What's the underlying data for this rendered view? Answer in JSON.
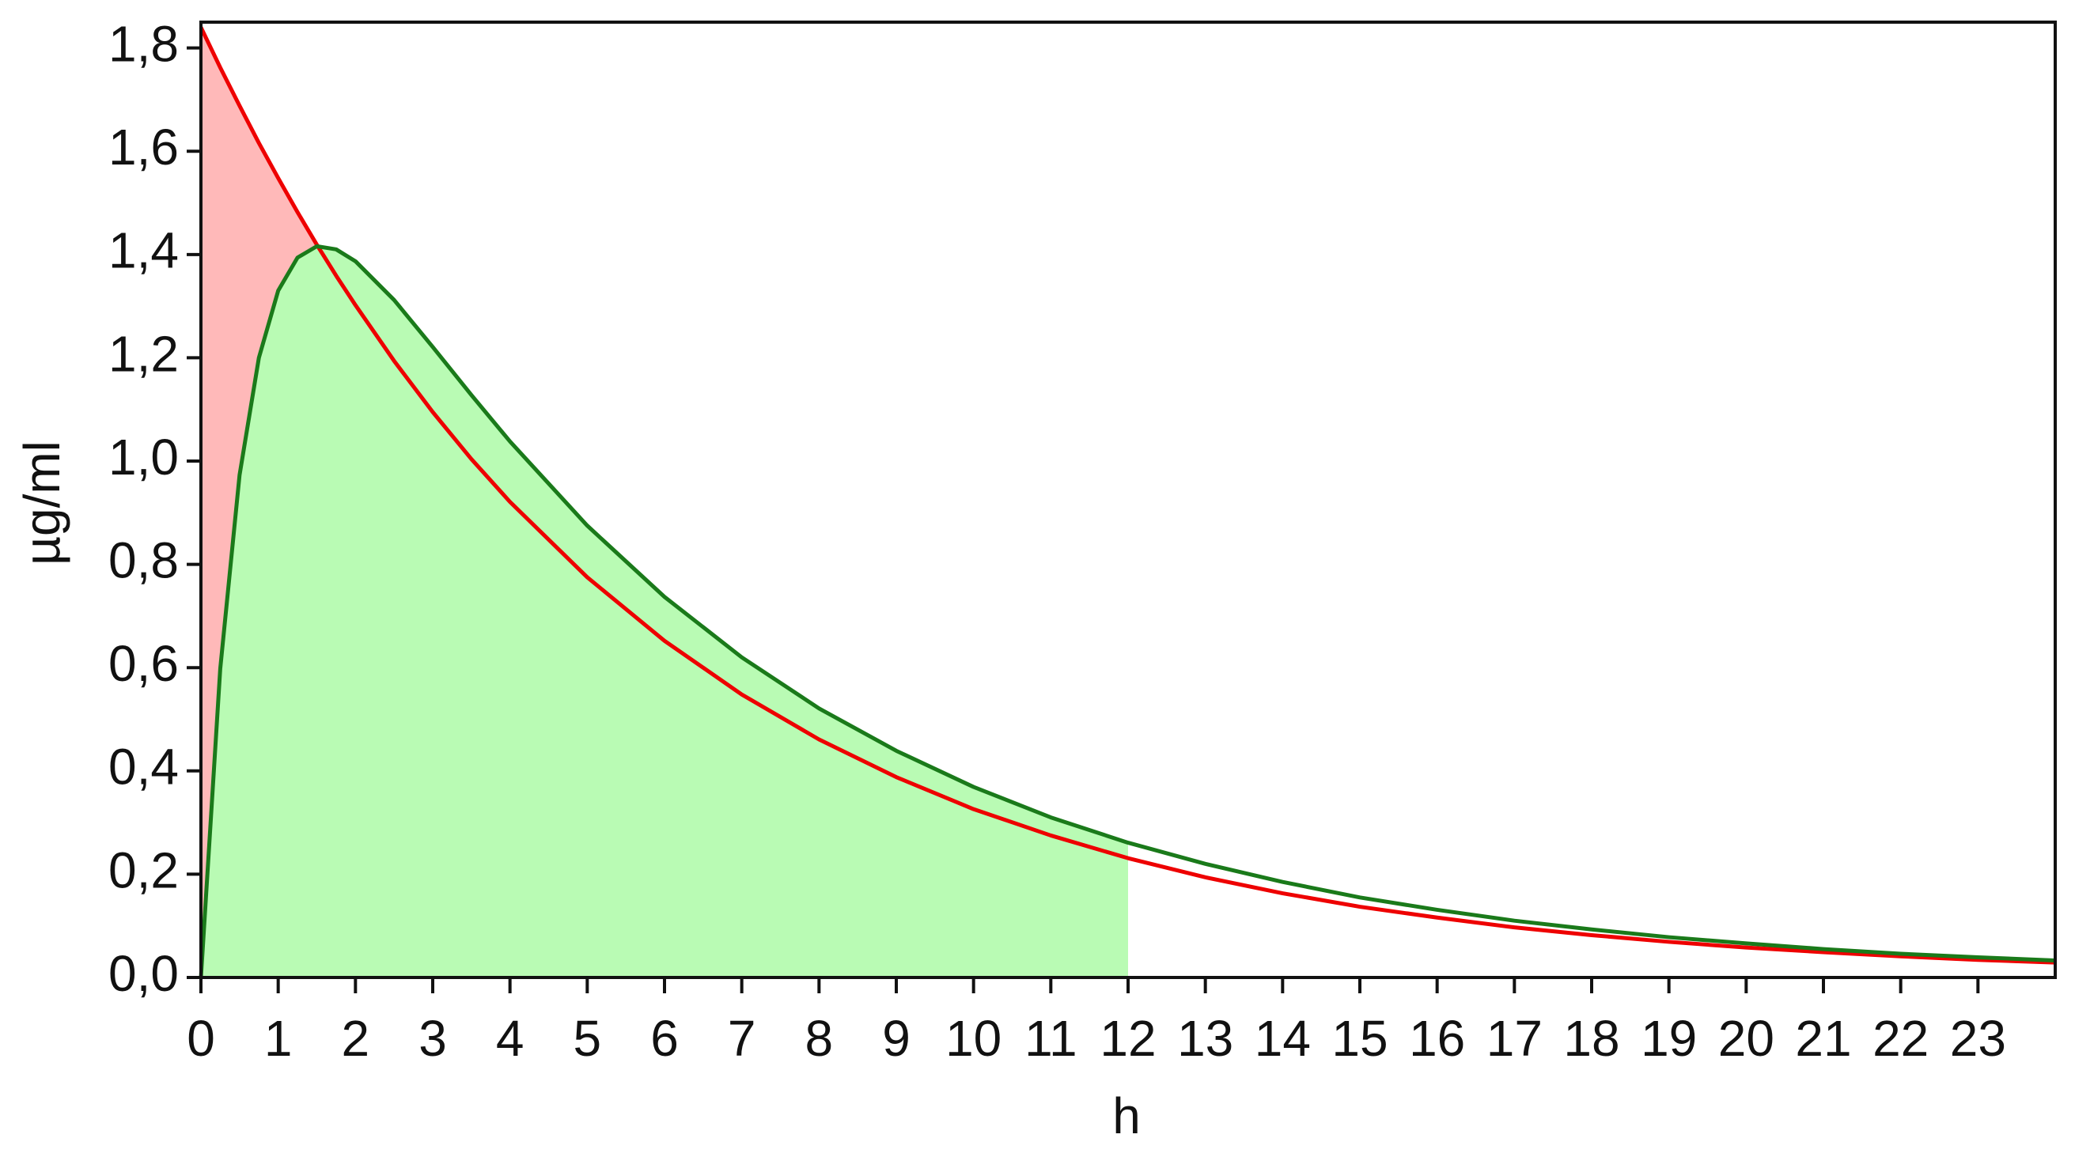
{
  "chart_data": {
    "type": "line",
    "xlabel": "h",
    "ylabel": "µg/ml",
    "x": [
      0,
      0.25,
      0.5,
      0.75,
      1,
      1.25,
      1.5,
      1.75,
      2,
      2.5,
      3,
      3.5,
      4,
      5,
      6,
      7,
      8,
      9,
      10,
      11,
      12,
      13,
      14,
      15,
      16,
      17,
      18,
      19,
      20,
      21,
      22,
      23,
      24
    ],
    "series": [
      {
        "color": "#ee0000",
        "fill_color": "#ffb9b9",
        "values": [
          1.84,
          1.762,
          1.688,
          1.616,
          1.548,
          1.482,
          1.419,
          1.359,
          1.302,
          1.194,
          1.095,
          1.004,
          0.921,
          0.775,
          0.652,
          0.548,
          0.461,
          0.388,
          0.326,
          0.275,
          0.231,
          0.194,
          0.163,
          0.137,
          0.116,
          0.097,
          0.082,
          0.069,
          0.058,
          0.049,
          0.041,
          0.034,
          0.029
        ]
      },
      {
        "color": "#1a7a1a",
        "fill_color": "#b9fbb4",
        "values": [
          0,
          0.598,
          0.973,
          1.2,
          1.33,
          1.394,
          1.416,
          1.41,
          1.387,
          1.312,
          1.221,
          1.128,
          1.038,
          0.875,
          0.737,
          0.62,
          0.521,
          0.439,
          0.369,
          0.31,
          0.261,
          0.22,
          0.185,
          0.155,
          0.131,
          0.11,
          0.093,
          0.078,
          0.066,
          0.055,
          0.046,
          0.039,
          0.033
        ]
      }
    ],
    "fill_to": 12,
    "xlim": [
      0,
      24
    ],
    "ylim": [
      0,
      1.85
    ],
    "xticks": [
      0,
      1,
      2,
      3,
      4,
      5,
      6,
      7,
      8,
      9,
      10,
      11,
      12,
      13,
      14,
      15,
      16,
      17,
      18,
      19,
      20,
      21,
      22,
      23
    ],
    "yticks": [
      {
        "value": 0,
        "label": "0,0"
      },
      {
        "value": 0.2,
        "label": "0,2"
      },
      {
        "value": 0.4,
        "label": "0,4"
      },
      {
        "value": 0.6,
        "label": "0,6"
      },
      {
        "value": 0.8,
        "label": "0,8"
      },
      {
        "value": 1.0,
        "label": "1,0"
      },
      {
        "value": 1.2,
        "label": "1,2"
      },
      {
        "value": 1.4,
        "label": "1,4"
      },
      {
        "value": 1.6,
        "label": "1,6"
      },
      {
        "value": 1.8,
        "label": "1,8"
      }
    ],
    "grid": false
  }
}
